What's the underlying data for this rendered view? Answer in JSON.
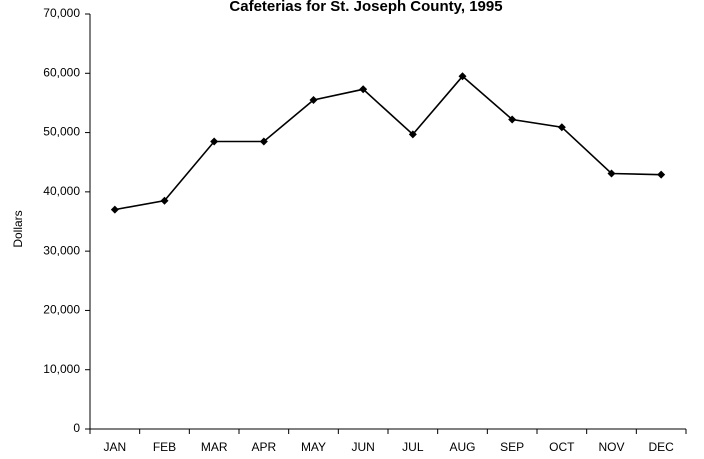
{
  "chart_data": {
    "type": "line",
    "title": "Cafeterias for St. Joseph County, 1995",
    "xlabel": "",
    "ylabel": "Dollars",
    "categories": [
      "JAN",
      "FEB",
      "MAR",
      "APR",
      "MAY",
      "JUN",
      "JUL",
      "AUG",
      "SEP",
      "OCT",
      "NOV",
      "DEC"
    ],
    "series": [
      {
        "values": [
          37000,
          38500,
          48500,
          48500,
          55500,
          57300,
          49700,
          59500,
          52200,
          50900,
          43100,
          42900
        ]
      }
    ],
    "ylim": [
      0,
      70000
    ],
    "yticks": [
      0,
      10000,
      20000,
      30000,
      40000,
      50000,
      60000,
      70000
    ],
    "ytick_labels": [
      "0",
      "10,000",
      "20,000",
      "30,000",
      "40,000",
      "50,000",
      "60,000",
      "70,000"
    ],
    "grid": false,
    "legend": "none",
    "line_color": "#000000",
    "marker": "diamond"
  }
}
